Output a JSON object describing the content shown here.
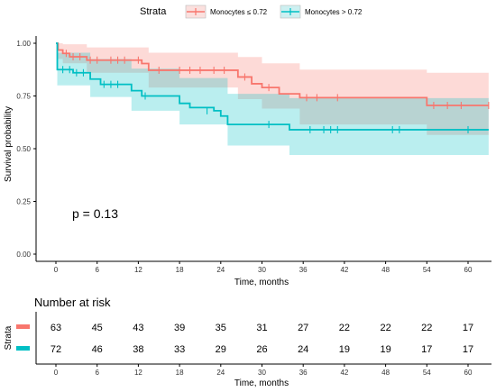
{
  "legend": {
    "title": "Strata",
    "entries": [
      "Monocytes ≤ 0.72",
      "Monocytes > 0.72"
    ]
  },
  "colors": {
    "low": "#F8766D",
    "high": "#00BFC4",
    "axis": "#000000",
    "tick_text": "#333333"
  },
  "pvalue_text": "p = 0.13",
  "risk_table": {
    "title": "Number at risk",
    "ylabel": "Strata",
    "xlabel": "Time, months"
  },
  "chart_data": {
    "type": "line",
    "subtype": "kaplan-meier",
    "xlabel": "Time, months",
    "ylabel": "Survival probability",
    "xlim": [
      0,
      63
    ],
    "ylim": [
      0,
      1
    ],
    "xticks": [
      0,
      6,
      12,
      18,
      24,
      30,
      36,
      42,
      48,
      54,
      60
    ],
    "yticks": [
      "0.00",
      "0.25",
      "0.50",
      "0.75",
      "1.00"
    ],
    "ytick_values": [
      0,
      0.25,
      0.5,
      0.75,
      1.0
    ],
    "grid": false,
    "legend_position": "top",
    "series": [
      {
        "name": "Monocytes ≤ 0.72",
        "color": "#F8766D",
        "steps": [
          [
            0,
            1.0
          ],
          [
            0.3,
            0.968
          ],
          [
            1.0,
            0.952
          ],
          [
            2.0,
            0.936
          ],
          [
            4.5,
            0.92
          ],
          [
            12.5,
            0.904
          ],
          [
            13.5,
            0.872
          ],
          [
            26.5,
            0.84
          ],
          [
            28.5,
            0.808
          ],
          [
            30,
            0.79
          ],
          [
            32.5,
            0.76
          ],
          [
            35.5,
            0.742
          ],
          [
            54,
            0.705
          ]
        ],
        "end": 63,
        "ci_upper": [
          [
            0,
            1.0
          ],
          [
            0.3,
            1.0
          ],
          [
            1.0,
            0.995
          ],
          [
            4.5,
            0.98
          ],
          [
            13.5,
            0.955
          ],
          [
            26.5,
            0.935
          ],
          [
            30,
            0.905
          ],
          [
            35.5,
            0.875
          ],
          [
            54,
            0.86
          ]
        ],
        "ci_lower": [
          [
            0,
            1.0
          ],
          [
            0.3,
            0.926
          ],
          [
            1.0,
            0.905
          ],
          [
            4.5,
            0.86
          ],
          [
            13.5,
            0.79
          ],
          [
            26.5,
            0.735
          ],
          [
            30,
            0.69
          ],
          [
            35.5,
            0.615
          ],
          [
            54,
            0.565
          ]
        ],
        "censored": [
          [
            1.5,
            0.952
          ],
          [
            2.5,
            0.936
          ],
          [
            3.5,
            0.936
          ],
          [
            5,
            0.92
          ],
          [
            6,
            0.92
          ],
          [
            8,
            0.92
          ],
          [
            9,
            0.92
          ],
          [
            10,
            0.92
          ],
          [
            12,
            0.92
          ],
          [
            15,
            0.872
          ],
          [
            18,
            0.872
          ],
          [
            19.5,
            0.872
          ],
          [
            21,
            0.872
          ],
          [
            23,
            0.872
          ],
          [
            24.5,
            0.872
          ],
          [
            27.5,
            0.84
          ],
          [
            31,
            0.79
          ],
          [
            36.5,
            0.742
          ],
          [
            38,
            0.742
          ],
          [
            41,
            0.742
          ],
          [
            55,
            0.705
          ],
          [
            57,
            0.705
          ],
          [
            59,
            0.705
          ],
          [
            63,
            0.705
          ]
        ],
        "at_risk": [
          63,
          45,
          43,
          39,
          35,
          31,
          27,
          22,
          22,
          22,
          17
        ]
      },
      {
        "name": "Monocytes > 0.72",
        "color": "#00BFC4",
        "steps": [
          [
            0,
            1.0
          ],
          [
            0.2,
            0.875
          ],
          [
            2.5,
            0.86
          ],
          [
            5,
            0.83
          ],
          [
            6.5,
            0.805
          ],
          [
            11,
            0.775
          ],
          [
            12.5,
            0.75
          ],
          [
            18,
            0.715
          ],
          [
            19.5,
            0.695
          ],
          [
            23,
            0.68
          ],
          [
            24,
            0.655
          ],
          [
            25,
            0.615
          ],
          [
            34,
            0.59
          ]
        ],
        "end": 63,
        "ci_upper": [
          [
            0,
            1.0
          ],
          [
            0.2,
            0.955
          ],
          [
            5,
            0.925
          ],
          [
            11,
            0.88
          ],
          [
            18,
            0.835
          ],
          [
            25,
            0.76
          ],
          [
            34,
            0.74
          ]
        ],
        "ci_lower": [
          [
            0,
            1.0
          ],
          [
            0.2,
            0.8
          ],
          [
            5,
            0.745
          ],
          [
            11,
            0.68
          ],
          [
            18,
            0.615
          ],
          [
            25,
            0.515
          ],
          [
            34,
            0.47
          ]
        ],
        "censored": [
          [
            1,
            0.875
          ],
          [
            2,
            0.875
          ],
          [
            3,
            0.86
          ],
          [
            4,
            0.86
          ],
          [
            7,
            0.805
          ],
          [
            8,
            0.805
          ],
          [
            9,
            0.805
          ],
          [
            13,
            0.75
          ],
          [
            22,
            0.68
          ],
          [
            31,
            0.615
          ],
          [
            37,
            0.59
          ],
          [
            39,
            0.59
          ],
          [
            40,
            0.59
          ],
          [
            41,
            0.59
          ],
          [
            49,
            0.59
          ],
          [
            50,
            0.59
          ],
          [
            60,
            0.59
          ]
        ],
        "at_risk": [
          72,
          46,
          38,
          33,
          29,
          26,
          24,
          19,
          19,
          17,
          17
        ]
      }
    ]
  }
}
